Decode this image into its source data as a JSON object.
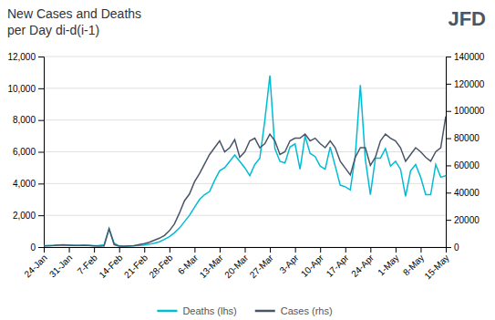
{
  "chart_data": {
    "type": "line",
    "title": "New Cases and Deaths",
    "subtitle": "per Day di-d(i-1)",
    "annotations": [
      {
        "text": "JFD",
        "color": "#4a5568"
      }
    ],
    "categories": [
      "24-Jan",
      null,
      null,
      null,
      null,
      "31-Jan",
      null,
      null,
      null,
      null,
      "7-Feb",
      null,
      null,
      null,
      null,
      "14-Feb",
      null,
      null,
      null,
      null,
      "21-Feb",
      null,
      null,
      null,
      null,
      "28-Feb",
      null,
      null,
      null,
      null,
      "6-Mar",
      null,
      null,
      null,
      null,
      "13-Mar",
      null,
      null,
      null,
      null,
      "20-Mar",
      null,
      null,
      null,
      null,
      "27-Mar",
      null,
      null,
      null,
      null,
      "3-Apr",
      null,
      null,
      null,
      null,
      "10-Apr",
      null,
      null,
      null,
      null,
      "17-Apr",
      null,
      null,
      null,
      null,
      "24-Apr",
      null,
      null,
      null,
      null,
      "1-May",
      null,
      null,
      null,
      null,
      "8-May",
      null,
      null,
      null,
      null,
      "15-May"
    ],
    "series": [
      {
        "name": "Deaths (lhs)",
        "color": "#00bcd4",
        "values": [
          80,
          90,
          100,
          110,
          120,
          130,
          110,
          100,
          110,
          100,
          90,
          100,
          150,
          1150,
          250,
          70,
          50,
          60,
          80,
          100,
          130,
          180,
          250,
          330,
          480,
          650,
          900,
          1200,
          1600,
          2000,
          2500,
          3000,
          3300,
          3500,
          4200,
          4800,
          5000,
          5400,
          5800,
          5400,
          5000,
          4500,
          5200,
          5600,
          8000,
          10800,
          6200,
          5400,
          5300,
          6300,
          6500,
          4900,
          7000,
          5900,
          5700,
          5100,
          4900,
          6300,
          5100,
          3900,
          3800,
          3600,
          5800,
          10200,
          5500,
          3300,
          5600,
          5600,
          6200,
          5100,
          5400,
          4900,
          3200,
          4800,
          5200,
          4400,
          3300,
          3300,
          5200,
          4400,
          4500
        ]
      },
      {
        "name": "Cases (rhs)",
        "color": "#4a5568",
        "axis": "y2",
        "values": [
          800,
          1000,
          1200,
          1500,
          1600,
          1400,
          1100,
          1200,
          1300,
          1100,
          900,
          700,
          900,
          13500,
          1800,
          700,
          600,
          800,
          1000,
          1800,
          2500,
          3500,
          5000,
          6500,
          8500,
          12000,
          17000,
          25000,
          34000,
          39000,
          48000,
          54000,
          61000,
          68000,
          73000,
          78000,
          70000,
          73000,
          79000,
          66000,
          70000,
          78000,
          80000,
          73000,
          76000,
          83000,
          78000,
          68000,
          70000,
          78000,
          80000,
          80000,
          83000,
          78000,
          80000,
          76000,
          73000,
          78000,
          73000,
          63000,
          58000,
          53000,
          66000,
          73000,
          73000,
          60000,
          66000,
          78000,
          83000,
          80000,
          78000,
          73000,
          63000,
          68000,
          73000,
          70000,
          66000,
          63000,
          70000,
          73000,
          96000
        ]
      }
    ],
    "ylim": [
      0,
      12000
    ],
    "yticks": [
      0,
      {
        "value": 2000,
        "label": "2,000"
      },
      {
        "value": 4000,
        "label": "4,000"
      },
      {
        "value": 6000,
        "label": "6,000"
      },
      {
        "value": 8000,
        "label": "8,000"
      },
      {
        "value": 10000,
        "label": "10,000"
      },
      {
        "value": 12000,
        "label": "12,000"
      }
    ],
    "y2lim": [
      0,
      140000
    ],
    "y2ticks": [
      0,
      20000,
      40000,
      60000,
      80000,
      100000,
      120000,
      140000
    ],
    "grid": true,
    "legend": "bottom"
  }
}
